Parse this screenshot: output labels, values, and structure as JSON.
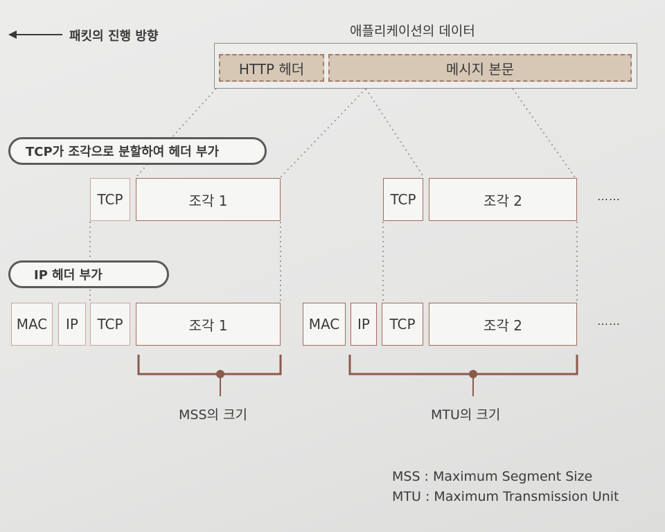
{
  "direction_label": "패킷의 진행 방향",
  "app_data": {
    "title": "애플리케이션의 데이터",
    "http_header": "HTTP 헤더",
    "message_body": "메시지 본문"
  },
  "step_tcp": "TCP가 조각으로 분할하여 헤더 부가",
  "step_ip": "IP 헤더 부가",
  "tcp_row": {
    "tcp1": "TCP",
    "frag1": "조각 1",
    "tcp2": "TCP",
    "frag2": "조각 2",
    "ellipsis": "……"
  },
  "ip_row": {
    "mac1": "MAC",
    "ip1": "IP",
    "tcp1": "TCP",
    "frag1": "조각 1",
    "mac2": "MAC",
    "ip2": "IP",
    "tcp2": "TCP",
    "frag2": "조각 2",
    "ellipsis": "……"
  },
  "mss_label": "MSS의 크기",
  "mtu_label": "MTU의 크기",
  "legend": {
    "mss": "MSS : Maximum Segment Size",
    "mtu": "MTU : Maximum Transmission Unit"
  },
  "colors": {
    "box_border": "#a06a5a",
    "segment_fill": "#d7c8b6",
    "bracket": "#8a5a4a",
    "dotted": "#9a9a9a"
  }
}
